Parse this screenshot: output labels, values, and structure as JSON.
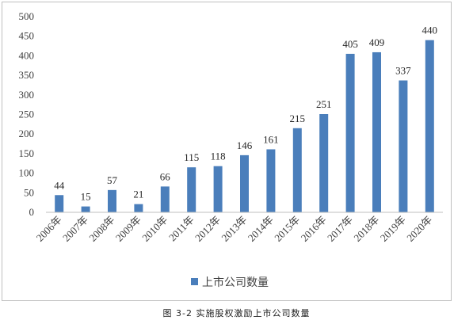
{
  "chart_data": {
    "type": "bar",
    "categories": [
      "2006年",
      "2007年",
      "2008年",
      "2009年",
      "2010年",
      "2011年",
      "2012年",
      "2013年",
      "2014年",
      "2015年",
      "2016年",
      "2017年",
      "2018年",
      "2019年",
      "2020年"
    ],
    "series": [
      {
        "name": "上市公司数量",
        "values": [
          44,
          15,
          57,
          21,
          66,
          115,
          118,
          146,
          161,
          215,
          251,
          405,
          409,
          337,
          440
        ]
      }
    ],
    "data_labels": [
      "44",
      "15",
      "57",
      "21",
      "66",
      "115",
      "118",
      "146",
      "161",
      "215",
      "251",
      "405",
      "409",
      "337",
      "440"
    ],
    "ylim": [
      0,
      500
    ],
    "yticks": [
      0,
      50,
      100,
      150,
      200,
      250,
      300,
      350,
      400,
      450,
      500
    ],
    "ytick_labels": [
      "0",
      "50",
      "100",
      "150",
      "200",
      "250",
      "300",
      "350",
      "400",
      "450",
      "500"
    ],
    "grid": false,
    "legend_position": "bottom",
    "colors": {
      "bar": "#4a7ebb",
      "axis": "#bfbfbf",
      "frame": "#bfbfbf"
    }
  },
  "caption": "图 3-2   实施股权激励上市公司数量"
}
